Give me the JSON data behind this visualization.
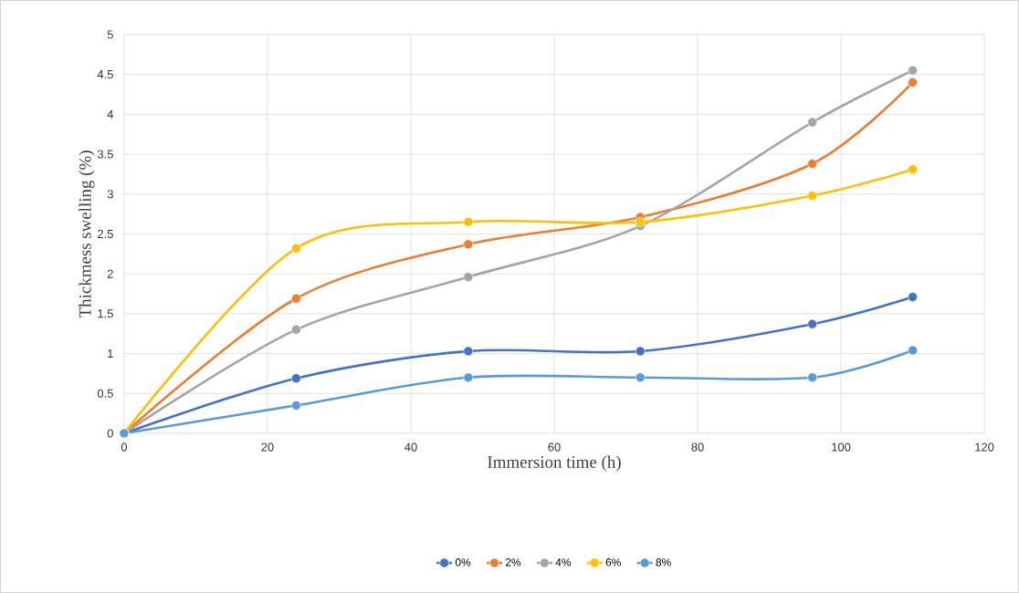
{
  "chart_data": {
    "type": "line",
    "xlabel": "Immersion time (h)",
    "ylabel": "Thickmess swelling (%)",
    "x": [
      0,
      24,
      48,
      72,
      96,
      110
    ],
    "series": [
      {
        "name": "0%",
        "color": "#4472c4",
        "values": [
          0,
          0.69,
          1.03,
          1.03,
          1.37,
          1.71
        ]
      },
      {
        "name": "2%",
        "color": "#ed7d31",
        "values": [
          0,
          1.69,
          2.37,
          2.71,
          3.38,
          4.4
        ]
      },
      {
        "name": "4%",
        "color": "#a5a5a5",
        "values": [
          0,
          1.3,
          1.96,
          2.6,
          3.9,
          4.55
        ]
      },
      {
        "name": "6%",
        "color": "#ffc000",
        "values": [
          0,
          2.32,
          2.65,
          2.65,
          2.98,
          3.31
        ]
      },
      {
        "name": "8%",
        "color": "#5b9bd5",
        "values": [
          0,
          0.35,
          0.7,
          0.7,
          0.7,
          1.04
        ]
      }
    ],
    "xlim": [
      0,
      120
    ],
    "xticks": [
      0,
      20,
      40,
      60,
      80,
      100,
      120
    ],
    "ylim": [
      0,
      5
    ],
    "yticks": [
      0,
      0.5,
      1,
      1.5,
      2,
      2.5,
      3,
      3.5,
      4,
      4.5,
      5
    ],
    "grid": true,
    "legend": "bottom",
    "marker": "circle",
    "line_style": "solid"
  }
}
